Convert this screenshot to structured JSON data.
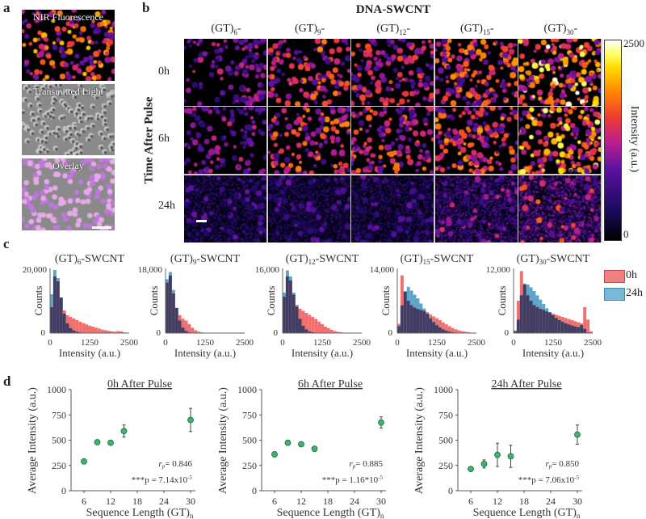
{
  "panel_labels": {
    "a": "a",
    "b": "b",
    "c": "c",
    "d": "d"
  },
  "panel_a": {
    "tiles": [
      {
        "label": "NIR Fluorescence"
      },
      {
        "label": "Transmitted Light"
      },
      {
        "label": "Overlay"
      }
    ]
  },
  "panel_b": {
    "title": "DNA-SWCNT",
    "gt_prefix": "(GT)",
    "col_suffix": "-",
    "columns": [
      {
        "n": "6"
      },
      {
        "n": "9"
      },
      {
        "n": "12"
      },
      {
        "n": "15"
      },
      {
        "n": "30"
      }
    ],
    "rows": [
      {
        "label": "0h"
      },
      {
        "label": "6h"
      },
      {
        "label": "24h"
      }
    ],
    "row_axis_label": "Time After Pulse",
    "colorbar": {
      "max": "2500",
      "min": "0",
      "label": "Intensity (a.u.)"
    }
  },
  "colors": {
    "hist_0h": "#f07070",
    "hist_24h": "#5fa3c6",
    "hist_overlap": "#433d63",
    "scatter_point": "#3cb371"
  },
  "chart_data": [
    {
      "type": "bar",
      "panel": "c",
      "title_prefix": "(GT)",
      "title_n": "6",
      "title_suffix": "-SWCNT",
      "xlabel": "Intensity (a.u.)",
      "ylabel": "Counts",
      "xlim": [
        0,
        2500
      ],
      "ylim": [
        0,
        20000
      ],
      "xticks": [
        "0",
        "1250",
        "2500"
      ],
      "yticks": [
        "0",
        "20,000"
      ],
      "bin_width": 100,
      "series": [
        {
          "name": "0h",
          "values": [
            8000,
            17500,
            16000,
            11000,
            7000,
            5500,
            5000,
            4500,
            4000,
            3500,
            3100,
            2700,
            2300,
            2000,
            1700,
            1400,
            1100,
            900,
            700,
            500,
            400,
            600,
            500,
            200,
            100
          ]
        },
        {
          "name": "24h",
          "values": [
            12000,
            19500,
            17000,
            11000,
            6000,
            3000,
            1500,
            800,
            400,
            200,
            100,
            50,
            0,
            0,
            0,
            0,
            0,
            0,
            0,
            0,
            0,
            0,
            0,
            0,
            0
          ]
        }
      ]
    },
    {
      "type": "bar",
      "panel": "c",
      "title_prefix": "(GT)",
      "title_n": "9",
      "title_suffix": "-SWCNT",
      "xlabel": "Intensity (a.u.)",
      "ylabel": "Counts",
      "xlim": [
        0,
        2500
      ],
      "ylim": [
        0,
        18000
      ],
      "xticks": [
        "0",
        "1250",
        "2500"
      ],
      "yticks": [
        "0",
        "18,000"
      ],
      "bin_width": 100,
      "series": [
        {
          "name": "0h",
          "values": [
            14000,
            16000,
            11000,
            7000,
            5000,
            4000,
            3500,
            2500,
            1500,
            800,
            400,
            200,
            100,
            50,
            0,
            0,
            0,
            0,
            0,
            0,
            0,
            0,
            0,
            0,
            0
          ]
        },
        {
          "name": "24h",
          "values": [
            15000,
            17000,
            12000,
            7000,
            3500,
            1500,
            600,
            200,
            100,
            0,
            0,
            0,
            0,
            0,
            0,
            0,
            0,
            0,
            0,
            0,
            0,
            0,
            0,
            0,
            0
          ]
        }
      ]
    },
    {
      "type": "bar",
      "panel": "c",
      "title_prefix": "(GT)",
      "title_n": "12",
      "title_suffix": "-SWCNT",
      "xlabel": "Intensity (a.u.)",
      "ylabel": "Counts",
      "xlim": [
        0,
        2500
      ],
      "ylim": [
        0,
        16000
      ],
      "xticks": [
        "0",
        "1250",
        "2500"
      ],
      "yticks": [
        "0",
        "16,000"
      ],
      "bin_width": 100,
      "series": [
        {
          "name": "0h",
          "values": [
            9000,
            14000,
            13000,
            9500,
            7000,
            6000,
            5500,
            5000,
            4500,
            4000,
            3500,
            2800,
            2200,
            1600,
            1200,
            800,
            500,
            300,
            200,
            100,
            50,
            0,
            0,
            0,
            0
          ]
        },
        {
          "name": "24h",
          "values": [
            10000,
            15500,
            14000,
            10000,
            6500,
            3500,
            1800,
            900,
            400,
            200,
            100,
            0,
            0,
            0,
            0,
            0,
            0,
            0,
            0,
            0,
            0,
            0,
            0,
            0,
            0
          ]
        }
      ]
    },
    {
      "type": "bar",
      "panel": "c",
      "title_prefix": "(GT)",
      "title_n": "15",
      "title_suffix": "-SWCNT",
      "xlabel": "Intensity (a.u.)",
      "ylabel": "Counts",
      "xlim": [
        0,
        2500
      ],
      "ylim": [
        0,
        14000
      ],
      "xticks": [
        "0",
        "1250",
        "2500"
      ],
      "yticks": [
        "0",
        "14,000"
      ],
      "bin_width": 100,
      "series": [
        {
          "name": "0h",
          "values": [
            2000,
            12500,
            9000,
            7000,
            6000,
            5500,
            5200,
            5000,
            4800,
            4500,
            4000,
            3600,
            3200,
            2800,
            2300,
            1900,
            1500,
            1100,
            800,
            600,
            400,
            300,
            200,
            100,
            50
          ]
        },
        {
          "name": "24h",
          "values": [
            1500,
            6000,
            9000,
            10000,
            9200,
            8300,
            7500,
            6400,
            5300,
            4200,
            3200,
            2400,
            1700,
            1200,
            800,
            500,
            300,
            150,
            80,
            40,
            20,
            0,
            0,
            0,
            0
          ]
        }
      ]
    },
    {
      "type": "bar",
      "panel": "c",
      "title_prefix": "(GT)",
      "title_n": "30",
      "title_suffix": "-SWCNT",
      "xlabel": "Intensity (a.u.)",
      "ylabel": "Counts",
      "xlim": [
        0,
        2500
      ],
      "ylim": [
        0,
        12000
      ],
      "xticks": [
        "0",
        "1250",
        "2500"
      ],
      "yticks": [
        "0",
        "12,000"
      ],
      "bin_width": 100,
      "series": [
        {
          "name": "0h",
          "values": [
            500,
            6000,
            11500,
            9000,
            7000,
            6000,
            5200,
            4800,
            4500,
            4300,
            4000,
            3800,
            3600,
            3400,
            3200,
            3000,
            2800,
            2600,
            2400,
            2200,
            2000,
            1800,
            4800,
            2500,
            300
          ]
        },
        {
          "name": "24h",
          "values": [
            300,
            2500,
            7000,
            9200,
            9000,
            8500,
            7800,
            7000,
            6200,
            5400,
            4600,
            3900,
            3300,
            2800,
            2400,
            2100,
            1800,
            1600,
            1400,
            1200,
            1100,
            1500,
            800,
            100,
            0
          ]
        }
      ]
    },
    {
      "type": "scatter",
      "panel": "d",
      "title": "0h After Pulse",
      "xlabel": "Sequence Length (GT)",
      "xlabel_sub": "n",
      "ylabel": "Average Intensity (a.u.)",
      "xlim": [
        3,
        33
      ],
      "ylim": [
        0,
        1000
      ],
      "xticks": [
        6,
        12,
        18,
        24,
        30
      ],
      "yticks": [
        0,
        250,
        500,
        750,
        1000
      ],
      "x": [
        6,
        9,
        12,
        15,
        30
      ],
      "y": [
        290,
        480,
        475,
        590,
        700
      ],
      "error": [
        10,
        12,
        10,
        60,
        115
      ],
      "annotation_r": "= 0.846",
      "annotation_p": "***p = 7.14x10",
      "annotation_p_exp": "-5",
      "r_symbol": "r",
      "r_sub": "p"
    },
    {
      "type": "scatter",
      "panel": "d",
      "title": "6h After Pulse",
      "xlabel": "Sequence Length (GT)",
      "xlabel_sub": "n",
      "ylabel": "Average Intensity (a.u.)",
      "xlim": [
        3,
        33
      ],
      "ylim": [
        0,
        1000
      ],
      "xticks": [
        6,
        12,
        18,
        24,
        30
      ],
      "yticks": [
        0,
        250,
        500,
        750,
        1000
      ],
      "x": [
        6,
        9,
        12,
        15,
        30
      ],
      "y": [
        360,
        475,
        460,
        415,
        675
      ],
      "error": [
        25,
        25,
        10,
        25,
        55
      ],
      "annotation_r": "= 0.885",
      "annotation_p": "***p = 1.16*10",
      "annotation_p_exp": "-5",
      "r_symbol": "r",
      "r_sub": "p"
    },
    {
      "type": "scatter",
      "panel": "d",
      "title": "24h After Pulse",
      "xlabel": "Sequence Length (GT)",
      "xlabel_sub": "n",
      "ylabel": "Average Intensity (a.u.)",
      "xlim": [
        3,
        33
      ],
      "ylim": [
        0,
        1000
      ],
      "xticks": [
        6,
        12,
        18,
        24,
        30
      ],
      "yticks": [
        0,
        250,
        500,
        750,
        1000
      ],
      "x": [
        6,
        9,
        12,
        15,
        30
      ],
      "y": [
        215,
        265,
        355,
        340,
        555
      ],
      "error": [
        10,
        40,
        115,
        110,
        95
      ],
      "annotation_r": "= 0.850",
      "annotation_p": "***p = 7.06x10",
      "annotation_p_exp": "-5",
      "r_symbol": "r",
      "r_sub": "p"
    }
  ],
  "legend": [
    {
      "label": "0h"
    },
    {
      "label": "24h"
    }
  ]
}
